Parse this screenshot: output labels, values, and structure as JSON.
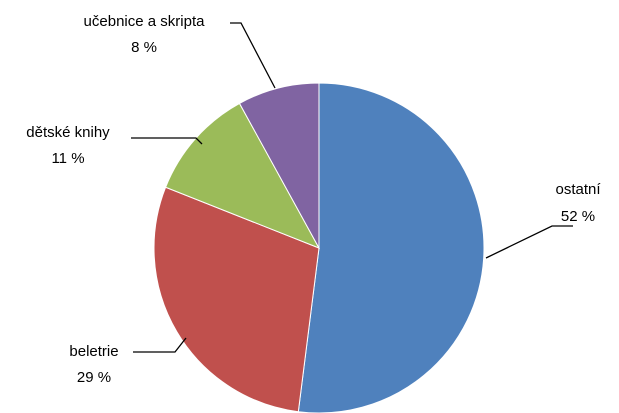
{
  "chart_data": {
    "type": "pie",
    "title": "",
    "slices": [
      {
        "label": "ostatní",
        "value_label": "52 %",
        "value": 52,
        "color": "#4F81BD"
      },
      {
        "label": "beletrie",
        "value_label": "29 %",
        "value": 29,
        "color": "#C0504D"
      },
      {
        "label": "dětské knihy",
        "value_label": "11 %",
        "value": 11,
        "color": "#9BBB59"
      },
      {
        "label": "učebnice a skripta",
        "value_label": "8 %",
        "value": 8,
        "color": "#8064A2"
      }
    ],
    "legend": "none",
    "start_angle": "12 o'clock",
    "direction": "clockwise"
  }
}
